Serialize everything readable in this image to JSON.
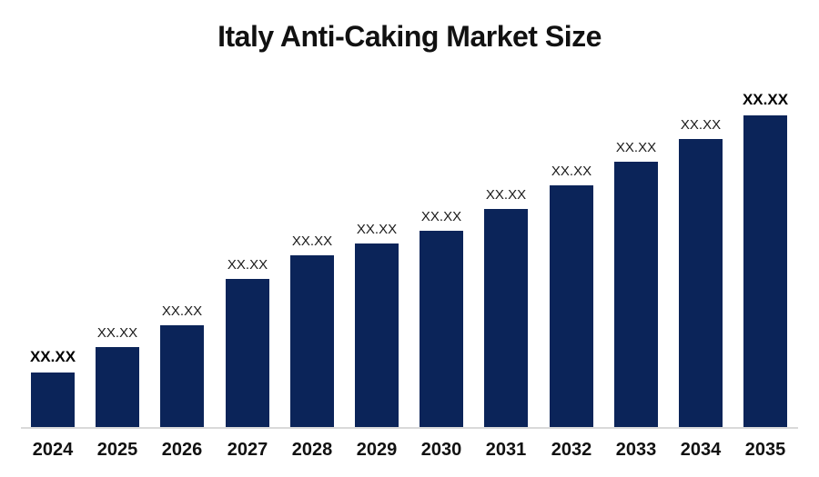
{
  "title": "Italy Anti-Caking Market Size",
  "colors": {
    "bar": "#0b2459",
    "axis_line": "#d9d9d9",
    "title_text": "#111111",
    "value_label_text": "#1a1a1a"
  },
  "chart_data": {
    "type": "bar",
    "title": "Italy Anti-Caking Market Size",
    "xlabel": "",
    "ylabel": "",
    "legend_position": "none",
    "grid": false,
    "categories": [
      "2024",
      "2025",
      "2026",
      "2027",
      "2028",
      "2029",
      "2030",
      "2031",
      "2032",
      "2033",
      "2034",
      "2035"
    ],
    "values_display": [
      "XX.XX",
      "XX.XX",
      "XX.XX",
      "XX.XX",
      "XX.XX",
      "XX.XX",
      "XX.XX",
      "XX.XX",
      "XX.XX",
      "XX.XX",
      "XX.XX",
      "XX.XX"
    ],
    "relative_heights_pct_of_max": [
      17.5,
      25.7,
      32.7,
      47.5,
      55.1,
      58.9,
      63.0,
      70.0,
      77.6,
      85.1,
      92.4,
      100.0
    ],
    "value_label_emphasized": [
      true,
      false,
      false,
      false,
      false,
      false,
      false,
      false,
      false,
      false,
      false,
      true
    ],
    "ylim": [
      0,
      100
    ]
  }
}
